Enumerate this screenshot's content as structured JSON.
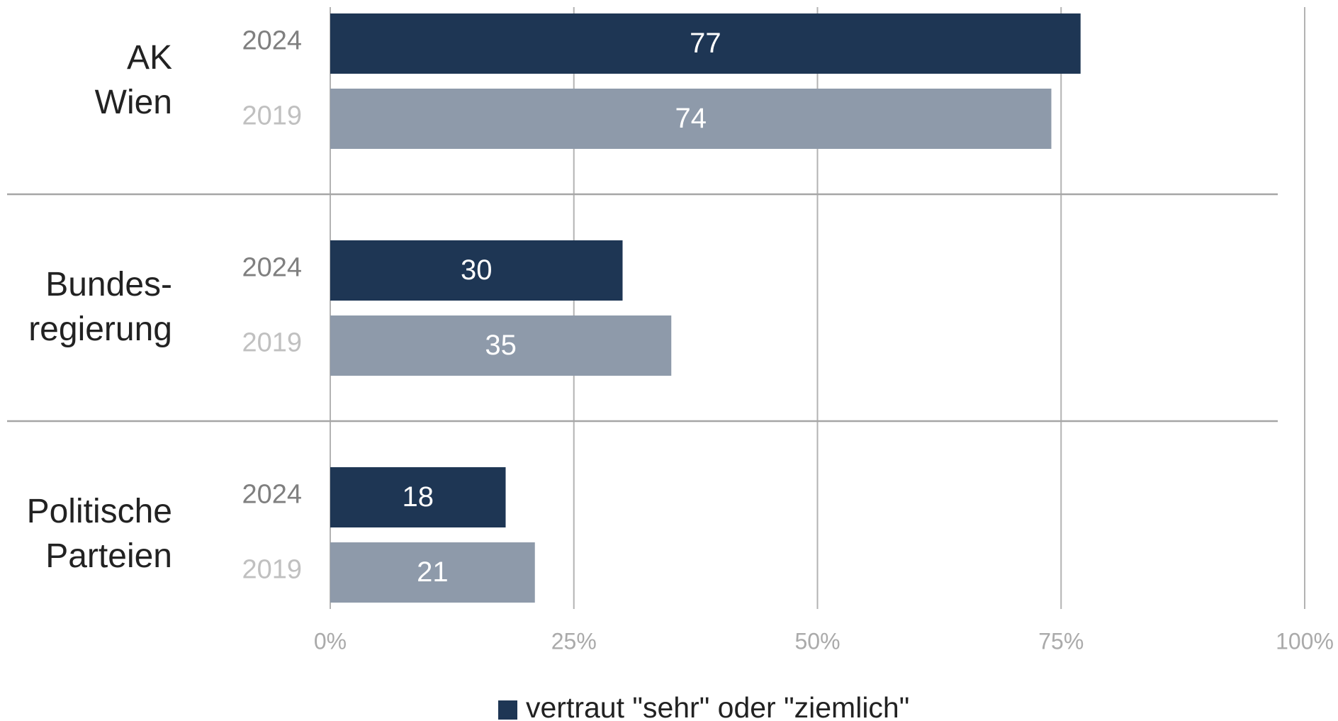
{
  "chart_data": {
    "type": "bar",
    "orientation": "horizontal",
    "categories": [
      [
        "AK",
        "Wien"
      ],
      [
        "Bundes-",
        "regierung"
      ],
      [
        "Politische",
        "Parteien"
      ]
    ],
    "series": [
      {
        "name": "2024",
        "color": "#1e3654",
        "values": [
          77,
          30,
          18
        ]
      },
      {
        "name": "2019",
        "color": "#8e9aaa",
        "values": [
          74,
          35,
          21
        ]
      }
    ],
    "xlim": [
      0,
      100
    ],
    "xticks": [
      {
        "value": 0,
        "label": "0%"
      },
      {
        "value": 25,
        "label": "25%"
      },
      {
        "value": 50,
        "label": "50%"
      },
      {
        "value": 75,
        "label": "75%"
      },
      {
        "value": 100,
        "label": "100%"
      }
    ],
    "grid": true,
    "legend": {
      "label": "vertraut \"sehr\" oder \"ziemlich\"",
      "color": "#1e3654",
      "position": "bottom"
    }
  }
}
